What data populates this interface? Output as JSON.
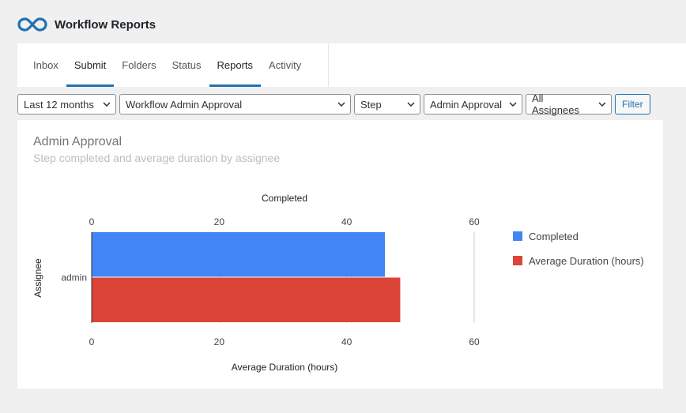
{
  "app": {
    "title": "Workflow Reports",
    "logo_icon": "infinity-loop-logo",
    "logo_color": "#2271b1"
  },
  "tabs": [
    {
      "label": "Inbox",
      "active": false
    },
    {
      "label": "Submit",
      "active": true
    },
    {
      "label": "Folders",
      "active": false
    },
    {
      "label": "Status",
      "active": false
    },
    {
      "label": "Reports",
      "active": true
    },
    {
      "label": "Activity",
      "active": false
    }
  ],
  "filters": {
    "range": "Last 12 months",
    "workflow": "Workflow Admin Approval",
    "report_type": "Step",
    "step": "Admin Approval",
    "assignee": "All Assignees",
    "filter_button": "Filter"
  },
  "card": {
    "title": "Admin Approval",
    "subtitle": "Step completed and average duration by assignee"
  },
  "chart_data": {
    "type": "bar",
    "orientation": "horizontal",
    "categories": [
      "admin"
    ],
    "series": [
      {
        "name": "Completed",
        "values": [
          46
        ],
        "color": "#4285f4",
        "axis": "top"
      },
      {
        "name": "Average Duration (hours)",
        "values": [
          48.4
        ],
        "color": "#db4437",
        "axis": "bottom"
      }
    ],
    "top_axis": {
      "label": "Completed",
      "ticks": [
        "0",
        "20",
        "40",
        "60"
      ],
      "range": [
        0,
        60
      ]
    },
    "bottom_axis": {
      "label": "Average Duration (hours)",
      "ticks": [
        "0",
        "20",
        "40",
        "60"
      ],
      "range": [
        0,
        60
      ]
    },
    "ylabel": "Assignee",
    "grid": true,
    "legend": "right"
  }
}
